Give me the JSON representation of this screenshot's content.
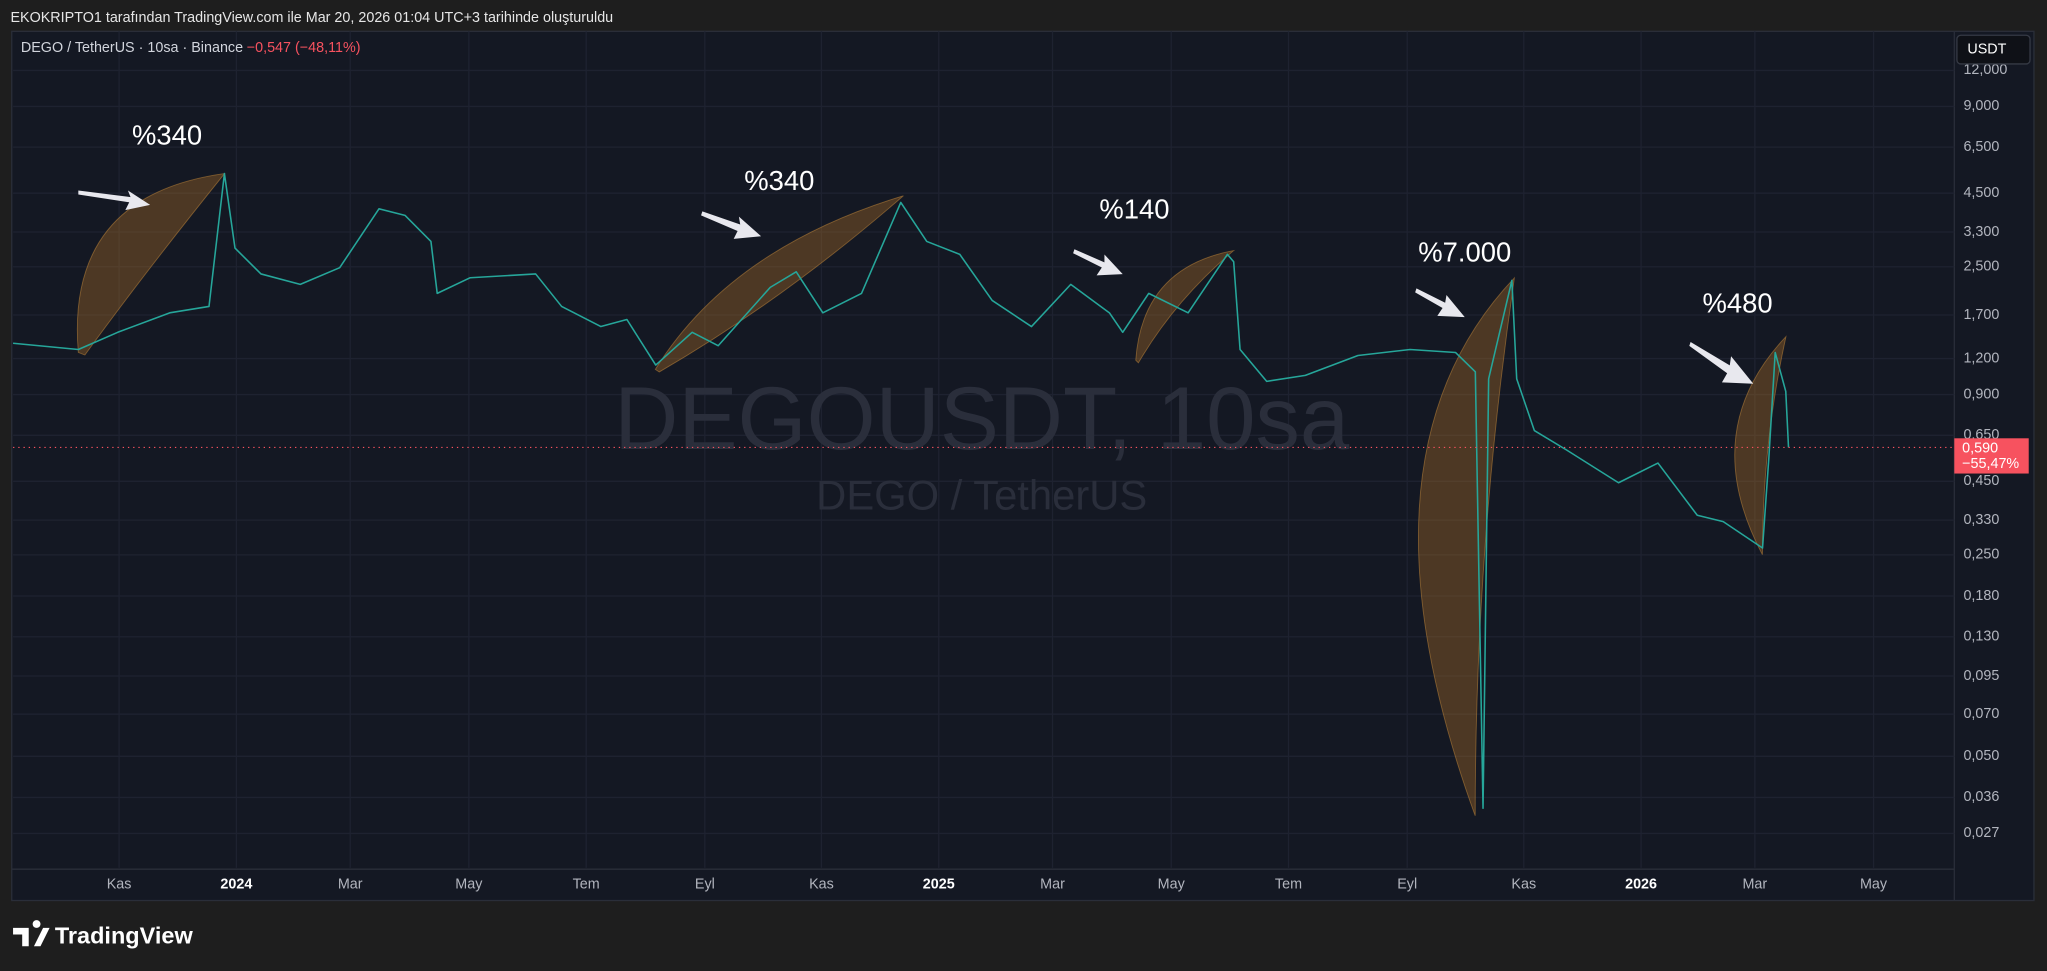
{
  "header": "EKOKRIPTO1 tarafından TradingView.com ile Mar 20, 2026 01:04 UTC+3 tarihinde oluşturuldu",
  "footer": "TradingView",
  "chart_data": {
    "type": "line",
    "title": "DEGO / TetherUS · 10sa · Binance",
    "change": "−0,547 (−48,11%)",
    "watermark": "DEGOUSDT, 10sa",
    "watermark_subtitle": "DEGO / TetherUS",
    "currency": "USDT",
    "annotations": [
      "%340",
      "%340",
      "%140",
      "%7.000",
      "%480"
    ],
    "color": "#26a69a",
    "x": [
      2023.682,
      2023.775,
      2023.831,
      2023.905,
      2023.961,
      2023.983,
      2023.998,
      2024.035,
      2024.091,
      2024.147,
      2024.203,
      2024.24,
      2024.277,
      2024.286,
      2024.333,
      2024.426,
      2024.463,
      2024.519,
      2024.556,
      2024.597,
      2024.649,
      2024.686,
      2024.76,
      2024.797,
      2024.835,
      2024.89,
      2024.946,
      2024.983,
      2025.03,
      2025.076,
      2025.132,
      2025.188,
      2025.243,
      2025.262,
      2025.299,
      2025.355,
      2025.411,
      2025.42,
      2025.429,
      2025.467,
      2025.522,
      2025.597,
      2025.671,
      2025.736,
      2025.764,
      2025.775,
      2025.783,
      2025.816,
      2025.823,
      2025.848,
      2025.894,
      2025.968,
      2026.024,
      2026.08,
      2026.117,
      2026.173,
      2026.182,
      2026.191,
      2026.206,
      2026.21
    ],
    "values": [
      1.356,
      1.29,
      1.48,
      1.73,
      1.82,
      5.26,
      2.9,
      2.36,
      2.17,
      2.48,
      3.97,
      3.77,
      3.06,
      2.02,
      2.29,
      2.36,
      1.82,
      1.55,
      1.64,
      1.14,
      1.48,
      1.33,
      2.12,
      2.4,
      1.73,
      2.02,
      4.18,
      3.06,
      2.76,
      1.91,
      1.55,
      2.17,
      1.73,
      1.48,
      2.02,
      1.73,
      2.76,
      2.6,
      1.29,
      1.0,
      1.05,
      1.23,
      1.29,
      1.26,
      1.08,
      0.033,
      1.02,
      2.24,
      1.02,
      0.675,
      0.578,
      0.445,
      0.521,
      0.343,
      0.326,
      0.264,
      0.548,
      1.26,
      0.923,
      0.59
    ],
    "xlim": [
      2023.682,
      2026.446
    ],
    "xticks": [
      {
        "value": 2023.833,
        "label": "Kas"
      },
      2024,
      {
        "value": 2024.162,
        "label": "Mar"
      },
      {
        "value": 2024.331,
        "label": "May"
      },
      {
        "value": 2024.498,
        "label": "Tem"
      },
      {
        "value": 2024.667,
        "label": "Eyl"
      },
      {
        "value": 2024.833,
        "label": "Kas"
      },
      2025,
      {
        "value": 2025.162,
        "label": "Mar"
      },
      {
        "value": 2025.331,
        "label": "May"
      },
      {
        "value": 2025.498,
        "label": "Tem"
      },
      {
        "value": 2025.667,
        "label": "Eyl"
      },
      {
        "value": 2025.833,
        "label": "Kas"
      },
      2026,
      {
        "value": 2026.162,
        "label": "Mar"
      },
      {
        "value": 2026.331,
        "label": "May"
      }
    ],
    "ylim": [
      0.0205,
      16.4
    ],
    "log_scale": true,
    "grid": true,
    "yticks": [
      {
        "value": 12,
        "label": "12,000"
      },
      {
        "value": 9,
        "label": "9,000"
      },
      {
        "value": 6.5,
        "label": "6,500"
      },
      {
        "value": 4.5,
        "label": "4,500"
      },
      {
        "value": 3.3,
        "label": "3,300"
      },
      {
        "value": 2.5,
        "label": "2,500"
      },
      {
        "value": 1.7,
        "label": "1,700"
      },
      {
        "value": 1.2,
        "label": "1,200"
      },
      {
        "value": 0.9,
        "label": "0,900"
      },
      {
        "value": 0.65,
        "label": "0,650"
      },
      {
        "value": 0.45,
        "label": "0,450"
      },
      {
        "value": 0.33,
        "label": "0,330"
      },
      {
        "value": 0.25,
        "label": "0,250"
      },
      {
        "value": 0.18,
        "label": "0,180"
      },
      {
        "value": 0.13,
        "label": "0,130"
      },
      {
        "value": 0.095,
        "label": "0,095"
      },
      {
        "value": 0.07,
        "label": "0,070"
      },
      {
        "value": 0.05,
        "label": "0,050"
      },
      {
        "value": 0.036,
        "label": "0,036"
      },
      {
        "value": 0.027,
        "label": "0,027"
      }
    ],
    "last_price": {
      "value": 0.59,
      "label": "0,590"
    },
    "last_change": "−55,47%"
  }
}
